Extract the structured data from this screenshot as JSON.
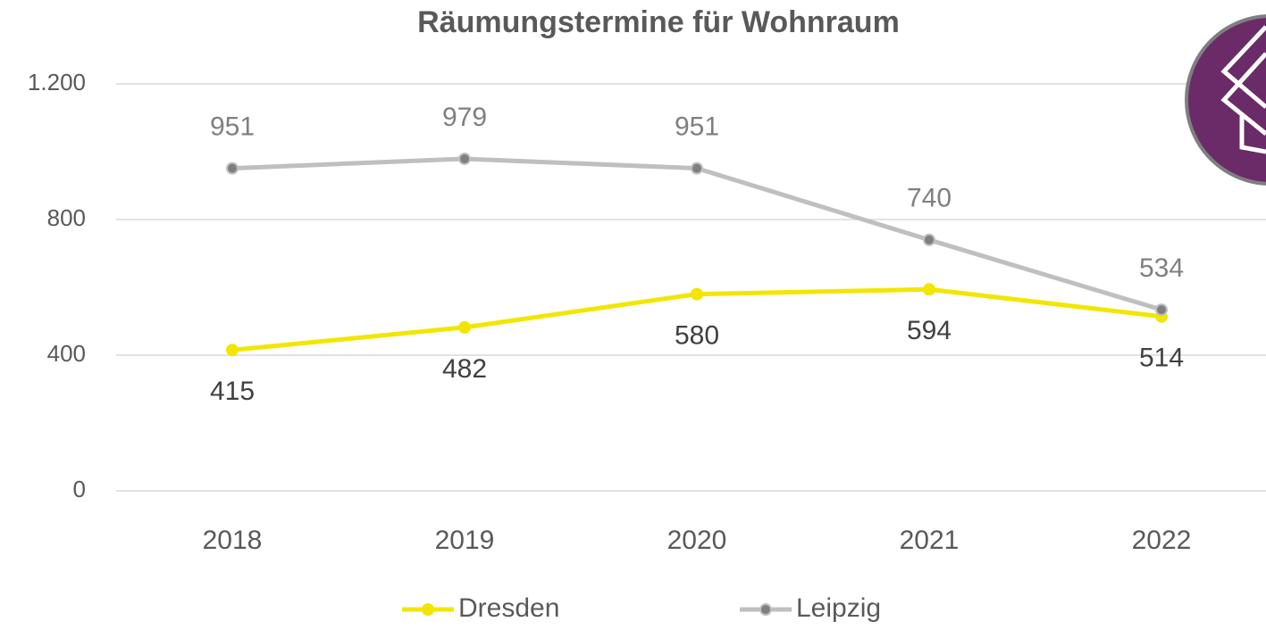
{
  "chart_data": {
    "type": "line",
    "title": "Räumungstermine für Wohnraum",
    "categories": [
      "2018",
      "2019",
      "2020",
      "2021",
      "2022"
    ],
    "series": [
      {
        "name": "Dresden",
        "color": "#f2e600",
        "marker_color": "#f2e600",
        "values": [
          415,
          482,
          580,
          594,
          514
        ]
      },
      {
        "name": "Leipzig",
        "color": "#bfbfbf",
        "marker_color": "#7f7f7f",
        "values": [
          951,
          979,
          951,
          740,
          534
        ]
      }
    ],
    "ylim": [
      0,
      1200
    ],
    "yticks": [
      0,
      400,
      800,
      {
        "value": 1200,
        "label": "1.200"
      }
    ],
    "grid": true,
    "legend": "bottom"
  }
}
